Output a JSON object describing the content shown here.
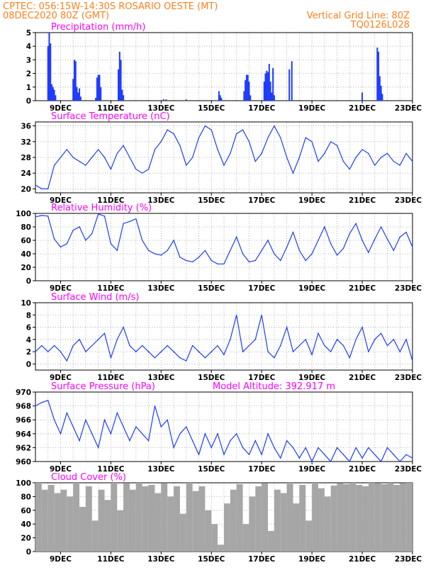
{
  "header": {
    "line1_left": "CPTEC:  056:15W-14:30S  ROSARIO OESTE (MT)",
    "line2_left": "08DEC2020 80Z (GMT)",
    "line2_right": "Vertical Grid Line: 80Z",
    "line3_right": "TQ0126L028"
  },
  "colors": {
    "header": "#ff7f1e",
    "title": "#ff00ff",
    "series": "#1f3bff",
    "cloud": "#a6a6a6"
  },
  "chart_data": [
    {
      "type": "bar",
      "title": "Precipitation (mm/h)",
      "xticks": [
        "9DEC",
        "11DEC",
        "13DEC",
        "15DEC",
        "17DEC",
        "19DEC",
        "21DEC",
        "23DEC"
      ],
      "ylim": [
        0,
        5
      ],
      "yticks": [
        0,
        1,
        2,
        3,
        4,
        5
      ],
      "grid": true,
      "x": [
        8.5,
        8.55,
        8.6,
        8.65,
        8.7,
        8.75,
        8.8,
        9.5,
        9.55,
        9.6,
        9.65,
        9.7,
        9.75,
        9.8,
        10.4,
        10.45,
        10.5,
        10.55,
        10.6,
        11.3,
        11.35,
        11.4,
        11.45,
        11.5,
        13.1,
        13.2,
        14.0,
        15.3,
        15.35,
        15.4,
        16.3,
        16.35,
        16.4,
        16.45,
        16.5,
        16.55,
        17.1,
        17.15,
        17.2,
        17.25,
        17.3,
        17.35,
        17.4,
        17.45,
        17.5,
        18.1,
        18.2,
        21.0,
        21.6,
        21.65,
        21.7,
        21.75,
        21.8
      ],
      "values": [
        4.0,
        5.0,
        4.2,
        1.2,
        1.0,
        0.8,
        0.4,
        1.6,
        3.0,
        2.9,
        1.0,
        0.6,
        0.9,
        0.3,
        0.2,
        1.7,
        1.9,
        1.9,
        1.0,
        2.3,
        3.6,
        3.0,
        0.8,
        0.4,
        0.1,
        0.1,
        0.1,
        0.7,
        0.4,
        0.2,
        0.7,
        1.5,
        1.9,
        1.9,
        1.4,
        0.4,
        1.4,
        2.0,
        2.2,
        2.1,
        2.7,
        1.4,
        0.6,
        2.4,
        0.4,
        2.3,
        2.9,
        0.6,
        3.9,
        3.6,
        1.8,
        1.1,
        0.5
      ]
    },
    {
      "type": "line",
      "title": "Surface Temperature (nC)",
      "xticks": [
        "9DEC",
        "11DEC",
        "13DEC",
        "15DEC",
        "17DEC",
        "19DEC",
        "21DEC",
        "23DEC"
      ],
      "ylim": [
        19,
        37
      ],
      "yticks": [
        20,
        24,
        28,
        32,
        36
      ],
      "grid": true,
      "x": [
        8.0,
        8.25,
        8.5,
        8.75,
        9.0,
        9.25,
        9.5,
        9.75,
        10.0,
        10.25,
        10.5,
        10.75,
        11.0,
        11.25,
        11.5,
        11.75,
        12.0,
        12.25,
        12.5,
        12.75,
        13.0,
        13.25,
        13.5,
        13.75,
        14.0,
        14.25,
        14.5,
        14.75,
        15.0,
        15.25,
        15.5,
        15.75,
        16.0,
        16.25,
        16.5,
        16.75,
        17.0,
        17.25,
        17.5,
        17.75,
        18.0,
        18.25,
        18.5,
        18.75,
        19.0,
        19.25,
        19.5,
        19.75,
        20.0,
        20.25,
        20.5,
        20.75,
        21.0,
        21.25,
        21.5,
        21.75,
        22.0,
        22.25,
        22.5,
        22.75,
        23.0
      ],
      "values": [
        21,
        20,
        20,
        26,
        28,
        30,
        28,
        27,
        26,
        28,
        30,
        28,
        25,
        29,
        31,
        28,
        25,
        24,
        25,
        30,
        32,
        35,
        34,
        31,
        26,
        28,
        33,
        36,
        35,
        30,
        26,
        29,
        34,
        35,
        32,
        27,
        29,
        33,
        36,
        33,
        28,
        24,
        28,
        33,
        32,
        27,
        29,
        32,
        31,
        27,
        25,
        28,
        30,
        29,
        26,
        28,
        29,
        27,
        26,
        29,
        27
      ]
    },
    {
      "type": "line",
      "title": "Relative Humidity (%)",
      "xticks": [
        "9DEC",
        "11DEC",
        "13DEC",
        "15DEC",
        "17DEC",
        "19DEC",
        "21DEC",
        "23DEC"
      ],
      "ylim": [
        0,
        100
      ],
      "yticks": [
        0,
        20,
        40,
        60,
        80,
        100
      ],
      "grid": true,
      "x": [
        8.0,
        8.25,
        8.5,
        8.75,
        9.0,
        9.25,
        9.5,
        9.75,
        10.0,
        10.25,
        10.5,
        10.75,
        11.0,
        11.25,
        11.5,
        11.75,
        12.0,
        12.25,
        12.5,
        12.75,
        13.0,
        13.25,
        13.5,
        13.75,
        14.0,
        14.25,
        14.5,
        14.75,
        15.0,
        15.25,
        15.5,
        15.75,
        16.0,
        16.25,
        16.5,
        16.75,
        17.0,
        17.25,
        17.5,
        17.75,
        18.0,
        18.25,
        18.5,
        18.75,
        19.0,
        19.25,
        19.5,
        19.75,
        20.0,
        20.25,
        20.5,
        20.75,
        21.0,
        21.25,
        21.5,
        21.75,
        22.0,
        22.25,
        22.5,
        22.75,
        23.0
      ],
      "values": [
        95,
        97,
        96,
        62,
        50,
        55,
        75,
        80,
        60,
        70,
        99,
        96,
        55,
        45,
        85,
        88,
        92,
        60,
        45,
        40,
        38,
        45,
        60,
        35,
        30,
        28,
        35,
        45,
        30,
        25,
        25,
        45,
        65,
        40,
        28,
        30,
        45,
        60,
        40,
        30,
        50,
        72,
        45,
        30,
        40,
        60,
        80,
        55,
        38,
        48,
        70,
        85,
        60,
        42,
        62,
        80,
        62,
        45,
        65,
        72,
        50
      ]
    },
    {
      "type": "line",
      "title": "Surface Wind (m/s)",
      "xticks": [
        "9DEC",
        "11DEC",
        "13DEC",
        "15DEC",
        "17DEC",
        "19DEC",
        "21DEC",
        "23DEC"
      ],
      "ylim": [
        -1,
        10
      ],
      "yticks": [
        0,
        2,
        4,
        6,
        8,
        10
      ],
      "grid": true,
      "x": [
        8.0,
        8.25,
        8.5,
        8.75,
        9.0,
        9.25,
        9.5,
        9.75,
        10.0,
        10.25,
        10.5,
        10.75,
        11.0,
        11.25,
        11.5,
        11.75,
        12.0,
        12.25,
        12.5,
        12.75,
        13.0,
        13.25,
        13.5,
        13.75,
        14.0,
        14.25,
        14.5,
        14.75,
        15.0,
        15.25,
        15.5,
        15.75,
        16.0,
        16.25,
        16.5,
        16.75,
        17.0,
        17.25,
        17.5,
        17.75,
        18.0,
        18.25,
        18.5,
        18.75,
        19.0,
        19.25,
        19.5,
        19.75,
        20.0,
        20.25,
        20.5,
        20.75,
        21.0,
        21.25,
        21.5,
        21.75,
        22.0,
        22.25,
        22.5,
        22.75,
        23.0
      ],
      "values": [
        2,
        3,
        2,
        3,
        2,
        0.5,
        3,
        4,
        2,
        3,
        4,
        5,
        1,
        4,
        6,
        3,
        2,
        3,
        2,
        1,
        2,
        3,
        2,
        1,
        0.5,
        3,
        2,
        1,
        2,
        3,
        1.5,
        4,
        8,
        2,
        3,
        4,
        8,
        2,
        1,
        3,
        6,
        2,
        3,
        4,
        1.5,
        5,
        3,
        2,
        4,
        3,
        1,
        4,
        6,
        2,
        4,
        5,
        3,
        4,
        2,
        4,
        0.5
      ]
    },
    {
      "type": "line",
      "title": "Surface Pressure (hPa)",
      "annotation": "Model Altitude: 392.917 m",
      "xticks": [
        "9DEC",
        "11DEC",
        "13DEC",
        "15DEC",
        "17DEC",
        "19DEC",
        "21DEC",
        "23DEC"
      ],
      "ylim": [
        960,
        970
      ],
      "yticks": [
        960,
        962,
        964,
        966,
        968,
        970
      ],
      "grid": true,
      "x": [
        8.0,
        8.25,
        8.5,
        8.75,
        9.0,
        9.25,
        9.5,
        9.75,
        10.0,
        10.25,
        10.5,
        10.75,
        11.0,
        11.25,
        11.5,
        11.75,
        12.0,
        12.25,
        12.5,
        12.75,
        13.0,
        13.25,
        13.5,
        13.75,
        14.0,
        14.25,
        14.5,
        14.75,
        15.0,
        15.25,
        15.5,
        15.75,
        16.0,
        16.25,
        16.5,
        16.75,
        17.0,
        17.25,
        17.5,
        17.75,
        18.0,
        18.25,
        18.5,
        18.75,
        19.0,
        19.25,
        19.5,
        19.75,
        20.0,
        20.25,
        20.5,
        20.75,
        21.0,
        21.25,
        21.5,
        21.75,
        22.0,
        22.25,
        22.5,
        22.75,
        23.0
      ],
      "values": [
        968,
        968.5,
        968.8,
        966,
        964,
        967,
        965,
        963,
        966,
        964,
        962,
        966,
        964,
        967,
        965,
        963,
        965,
        964,
        963,
        968,
        965,
        966,
        962,
        964,
        965,
        963,
        961,
        964,
        962,
        964,
        961,
        963,
        964,
        962,
        961,
        963,
        961,
        964,
        962,
        960.5,
        963,
        962,
        960.5,
        962,
        960,
        962,
        961,
        960,
        962,
        961,
        960,
        962,
        960.5,
        962,
        961,
        960,
        962,
        961,
        960,
        961,
        960.5
      ]
    },
    {
      "type": "bar",
      "title": "Cloud Cover (%)",
      "xticks": [
        "9DEC",
        "11DEC",
        "13DEC",
        "15DEC",
        "17DEC",
        "19DEC",
        "21DEC",
        "23DEC"
      ],
      "ylim": [
        0,
        100
      ],
      "yticks": [
        0,
        20,
        40,
        60,
        80,
        100
      ],
      "grid": true,
      "x": [
        8.0,
        8.25,
        8.5,
        8.75,
        9.0,
        9.25,
        9.5,
        9.75,
        10.0,
        10.25,
        10.5,
        10.75,
        11.0,
        11.25,
        11.5,
        11.75,
        12.0,
        12.25,
        12.5,
        12.75,
        13.0,
        13.25,
        13.5,
        13.75,
        14.0,
        14.25,
        14.5,
        14.75,
        15.0,
        15.25,
        15.5,
        15.75,
        16.0,
        16.25,
        16.5,
        16.75,
        17.0,
        17.25,
        17.5,
        17.75,
        18.0,
        18.25,
        18.5,
        18.75,
        19.0,
        19.25,
        19.5,
        19.75,
        20.0,
        20.25,
        20.5,
        20.75,
        21.0,
        21.25,
        21.5,
        21.75,
        22.0,
        22.25,
        22.5,
        22.75,
        23.0
      ],
      "values": [
        100,
        90,
        97,
        85,
        90,
        80,
        100,
        65,
        95,
        45,
        90,
        75,
        100,
        60,
        99,
        90,
        100,
        95,
        97,
        85,
        99,
        80,
        95,
        55,
        100,
        88,
        95,
        60,
        40,
        10,
        70,
        90,
        98,
        40,
        80,
        95,
        99,
        30,
        90,
        85,
        100,
        70,
        97,
        45,
        100,
        92,
        80,
        96,
        99,
        98,
        100,
        97,
        95,
        100,
        99,
        98,
        100,
        97,
        99,
        100,
        98
      ]
    }
  ]
}
